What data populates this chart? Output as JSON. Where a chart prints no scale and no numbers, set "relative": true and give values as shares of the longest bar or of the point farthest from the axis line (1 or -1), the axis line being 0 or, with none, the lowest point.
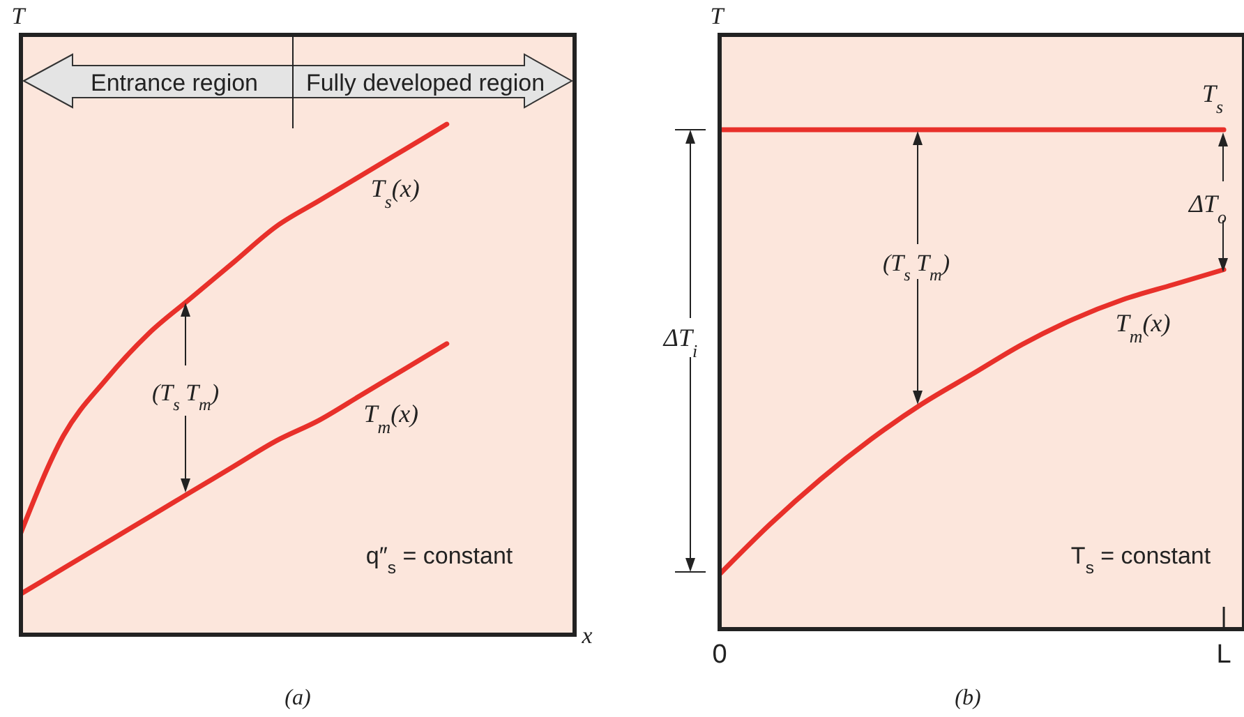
{
  "chart_data": [
    {
      "type": "line",
      "title": "(a)",
      "xlabel": "x",
      "ylabel": "T",
      "relative": true,
      "tick_labels": false,
      "legend": false,
      "categories": [
        null,
        null,
        null,
        null,
        null,
        null,
        null,
        null,
        null,
        null,
        null
      ],
      "series": [
        {
          "name": "T$_{s}$(x)",
          "color": "#e8302a",
          "values": [
            0.2,
            0.39,
            0.5,
            0.59,
            0.66,
            0.73,
            0.8,
            0.85,
            0.9,
            0.95,
            1
          ]
        },
        {
          "name": "T$_{m}$(x)",
          "color": "#e8302a",
          "values": [
            0.08,
            0.13,
            0.18,
            0.23,
            0.28,
            0.33,
            0.38,
            0.42,
            0.47,
            0.52,
            0.57
          ]
        }
      ],
      "annotations": [
        "Entrance region",
        "Fully developed region",
        "(T$_{s}$   T$_{m}$)",
        "q″$_{s}$ = constant"
      ]
    },
    {
      "type": "line",
      "title": "(b)",
      "ylabel": "T",
      "relative": true,
      "tick_labels": "x",
      "legend": false,
      "categories": [
        "0",
        null,
        null,
        null,
        null,
        null,
        null,
        null,
        null,
        null,
        "L"
      ],
      "series": [
        {
          "name": "T$_{s}$",
          "color": "#e8302a",
          "values": [
            1,
            1,
            1,
            1,
            1,
            1,
            1,
            1,
            1,
            1,
            1
          ]
        },
        {
          "name": "T$_{m}$(x)",
          "color": "#e8302a",
          "values": [
            0.11,
            0.21,
            0.3,
            0.38,
            0.45,
            0.51,
            0.57,
            0.62,
            0.66,
            0.69,
            0.72
          ]
        }
      ],
      "annotations": [
        "(T$_{s}$   T$_{m}$)",
        "ΔT$_{i}$",
        "ΔT$_{o}$",
        "T$_{s}$ = constant"
      ]
    }
  ]
}
